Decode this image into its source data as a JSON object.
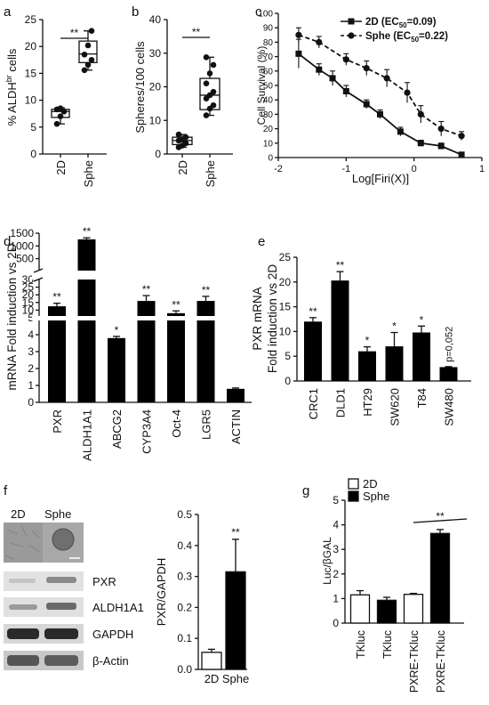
{
  "panels": {
    "a": "a",
    "b": "b",
    "c": "c",
    "d": "d",
    "e": "e",
    "f": "f",
    "g": "g"
  },
  "chart_data": [
    {
      "id": "a",
      "type": "box",
      "ylabel_prefix": "% ALDH",
      "ylabel_sup": "br",
      "ylabel_suffix": " cells",
      "ylim": [
        0,
        25
      ],
      "yticks": [
        0,
        5,
        10,
        15,
        20,
        25
      ],
      "categories": [
        "2D",
        "Sphe"
      ],
      "boxes": [
        {
          "min": 5.6,
          "q1": 6.8,
          "median": 7.9,
          "q3": 8.3,
          "max": 8.6,
          "points": [
            5.6,
            7.0,
            7.9,
            8.3,
            8.5
          ]
        },
        {
          "min": 15.6,
          "q1": 17.0,
          "median": 18.6,
          "q3": 21.0,
          "max": 22.9,
          "points": [
            15.6,
            16.6,
            17.5,
            18.5,
            20.2,
            22.9
          ]
        }
      ],
      "significance": "**"
    },
    {
      "id": "b",
      "type": "box",
      "ylabel": "Spheres/100 cells",
      "ylim": [
        0,
        40
      ],
      "yticks": [
        0,
        10,
        20,
        30,
        40
      ],
      "categories": [
        "2D",
        "Sphe"
      ],
      "boxes": [
        {
          "min": 2.0,
          "q1": 2.8,
          "median": 4.0,
          "q3": 5.0,
          "max": 5.8,
          "points": [
            2.0,
            2.5,
            3.2,
            4.0,
            4.3,
            5.0,
            5.8
          ]
        },
        {
          "min": 11.5,
          "q1": 13.2,
          "median": 17.5,
          "q3": 22.5,
          "max": 28.8,
          "points": [
            11.5,
            13.5,
            14.5,
            16.5,
            17.5,
            18.5,
            21.0,
            24.0,
            26.5,
            28.8
          ]
        }
      ],
      "significance": "**"
    },
    {
      "id": "c",
      "type": "line",
      "ylabel": "Cell Survival (%)",
      "xlabel": "Log[Firi(X)]",
      "xlim": [
        -2,
        1
      ],
      "ylim": [
        0,
        100
      ],
      "xticks": [
        -2,
        -1,
        0,
        1
      ],
      "yticks": [
        0,
        10,
        20,
        30,
        40,
        50,
        60,
        70,
        80,
        90,
        100
      ],
      "series": [
        {
          "name_main": "2D (EC",
          "name_sub": "50",
          "name_tail": "=0.09)",
          "style": "solid-square",
          "x": [
            -1.7,
            -1.4,
            -1.2,
            -1.0,
            -0.7,
            -0.5,
            -0.2,
            0.1,
            0.4,
            0.7
          ],
          "y": [
            72,
            61,
            55,
            46,
            37,
            30,
            18,
            10,
            8,
            2
          ],
          "err": [
            10,
            4,
            5,
            4,
            3,
            3,
            3,
            2,
            2,
            1
          ]
        },
        {
          "name_main": "Sphe (EC",
          "name_sub": "50",
          "name_tail": "=0.22)",
          "style": "dashed-circle",
          "x": [
            -1.7,
            -1.4,
            -1.0,
            -0.7,
            -0.4,
            -0.1,
            0.1,
            0.4,
            0.7
          ],
          "y": [
            85,
            80,
            68,
            62,
            55,
            45,
            30,
            20,
            15
          ],
          "err": [
            5,
            4,
            4,
            5,
            6,
            7,
            6,
            5,
            3
          ]
        }
      ]
    },
    {
      "id": "d",
      "type": "bar",
      "ylabel": "mRNA Fold induction vs 2D",
      "categories": [
        "PXR",
        "ALDH1A1",
        "ABCG2",
        "CYP3A4",
        "Oct-4",
        "LGR5",
        "ACTIN"
      ],
      "values": [
        12.5,
        1260,
        3.8,
        16.0,
        8.0,
        16.0,
        0.8
      ],
      "err": [
        2.0,
        60,
        0.1,
        3.5,
        1.5,
        3.0,
        0.05
      ],
      "labels": [
        "**",
        "**",
        "*",
        "**",
        "**",
        "**",
        ""
      ],
      "axis_segments": [
        {
          "range": [
            0,
            5
          ],
          "ticks": [
            0,
            1,
            2,
            3,
            4,
            5
          ]
        },
        {
          "range": [
            5,
            30
          ],
          "ticks": [
            5,
            10,
            15,
            20,
            25,
            30
          ]
        },
        {
          "range": [
            30,
            1500
          ],
          "ticks": [
            500,
            1000,
            1500
          ]
        }
      ]
    },
    {
      "id": "e",
      "type": "bar",
      "ylabel_line1": "PXR mRNA",
      "ylabel_line2": "Fold induction vs 2D",
      "ylim": [
        0,
        25
      ],
      "yticks": [
        0,
        5,
        10,
        15,
        20,
        25
      ],
      "categories": [
        "CRC1",
        "DLD1",
        "HT29",
        "SW620",
        "T84",
        "SW480"
      ],
      "values": [
        12.0,
        20.3,
        6.0,
        7.0,
        9.8,
        2.8
      ],
      "err": [
        0.8,
        1.8,
        0.9,
        2.8,
        1.3,
        0.1
      ],
      "labels": [
        "**",
        "**",
        "*",
        "*",
        "*",
        "p=0,052"
      ]
    },
    {
      "id": "f",
      "type": "bar",
      "ylabel": "PXR/GAPDH",
      "ylim": [
        0,
        0.5
      ],
      "yticks": [
        0.0,
        0.1,
        0.2,
        0.3,
        0.4,
        0.5
      ],
      "categories": [
        "2D",
        "Sphe"
      ],
      "values": [
        0.055,
        0.315
      ],
      "err": [
        0.01,
        0.105
      ],
      "fills": [
        "#ffffff",
        "#000000"
      ],
      "significance": "**"
    },
    {
      "id": "g",
      "type": "bar",
      "ylabel": "Luc/βGAL",
      "ylim": [
        0,
        5
      ],
      "yticks": [
        0,
        1,
        2,
        3,
        4,
        5
      ],
      "legend": [
        "2D",
        "Sphe"
      ],
      "categories": [
        "TKluc",
        "TKluc",
        "PXRE-TKluc",
        "PXRE-TKluc"
      ],
      "values": [
        1.15,
        0.93,
        1.17,
        3.65
      ],
      "err": [
        0.17,
        0.12,
        0.04,
        0.16
      ],
      "fills": [
        "#ffffff",
        "#000000",
        "#ffffff",
        "#000000"
      ],
      "significance": "**"
    }
  ],
  "blot": {
    "header": [
      "2D",
      "Sphe"
    ],
    "rows": [
      "PXR",
      "ALDH1A1",
      "GAPDH",
      "β-Actin"
    ]
  }
}
